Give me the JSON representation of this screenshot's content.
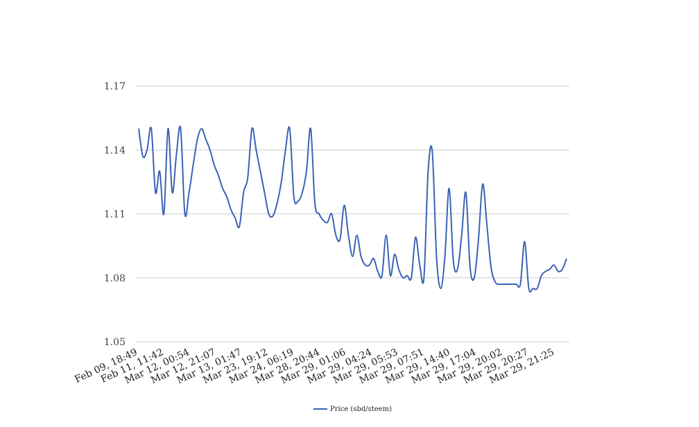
{
  "chart_data": {
    "type": "line",
    "ylim": [
      1.05,
      1.17
    ],
    "y_ticks": [
      "1.17",
      "1.14",
      "1.11",
      "1.08",
      "1.05"
    ],
    "grid": true,
    "x_tick_labels": [
      "Feb 09, 18:49",
      "Feb 11, 11:42",
      "Mar 12, 00:54",
      "Mar 12, 21:07",
      "Mar 13, 01:47",
      "Mar 23, 19:12",
      "Mar 24, 06:19",
      "Mar 28, 20:44",
      "Mar 29, 01:06",
      "Mar 29, 04:24",
      "Mar 29, 05:53",
      "Mar 29, 07:51",
      "Mar 29, 14:40",
      "Mar 29, 17:04",
      "Mar 29, 20:02",
      "Mar 29, 20:27",
      "Mar 29, 21:25"
    ],
    "legend_position": "bottom-center",
    "series": [
      {
        "name": "Price (sbd/steem)",
        "color": "#3a62b4",
        "values": [
          1.15,
          1.137,
          1.14,
          1.15,
          1.12,
          1.13,
          1.11,
          1.15,
          1.12,
          1.138,
          1.15,
          1.11,
          1.12,
          1.133,
          1.145,
          1.15,
          1.145,
          1.14,
          1.133,
          1.128,
          1.122,
          1.118,
          1.112,
          1.108,
          1.104,
          1.12,
          1.127,
          1.15,
          1.14,
          1.13,
          1.12,
          1.11,
          1.109,
          1.115,
          1.125,
          1.14,
          1.15,
          1.118,
          1.116,
          1.12,
          1.13,
          1.15,
          1.115,
          1.11,
          1.107,
          1.106,
          1.11,
          1.1,
          1.098,
          1.114,
          1.1,
          1.09,
          1.1,
          1.09,
          1.086,
          1.086,
          1.089,
          1.083,
          1.081,
          1.1,
          1.081,
          1.091,
          1.084,
          1.08,
          1.081,
          1.08,
          1.099,
          1.086,
          1.08,
          1.13,
          1.139,
          1.09,
          1.075,
          1.09,
          1.122,
          1.088,
          1.084,
          1.1,
          1.12,
          1.085,
          1.08,
          1.098,
          1.124,
          1.105,
          1.085,
          1.078,
          1.077,
          1.077,
          1.077,
          1.077,
          1.077,
          1.077,
          1.097,
          1.075,
          1.075,
          1.075,
          1.081,
          1.083,
          1.084,
          1.086,
          1.083,
          1.084,
          1.089
        ]
      }
    ]
  }
}
